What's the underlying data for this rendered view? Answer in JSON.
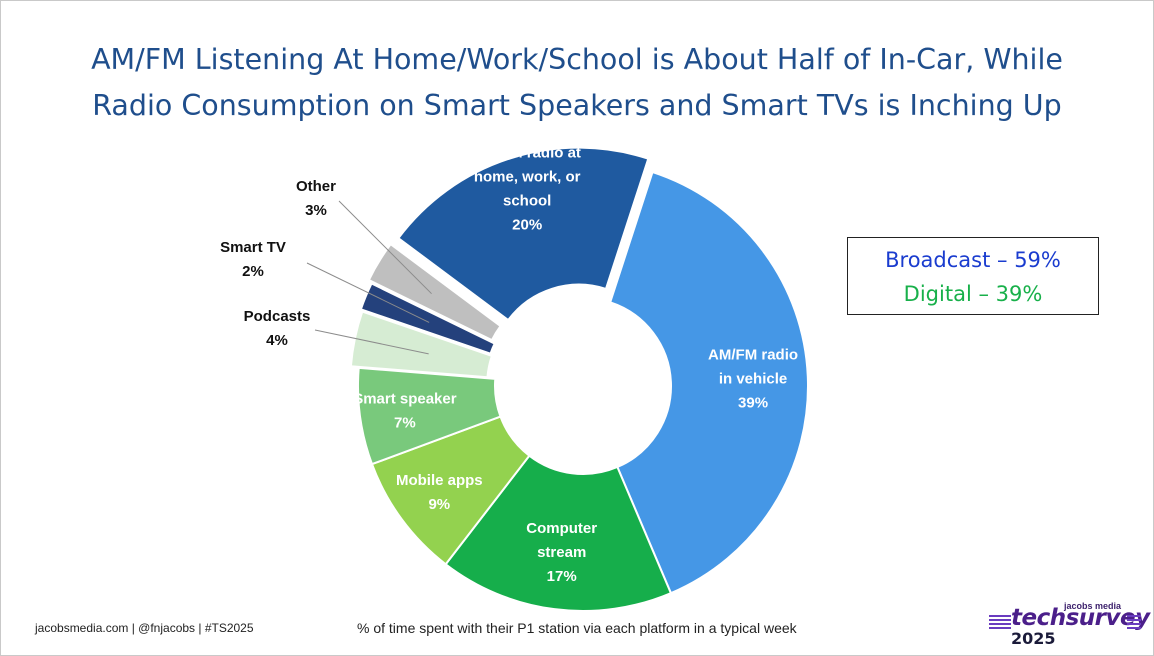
{
  "title": {
    "line1": "AM/FM Listening At Home/Work/School is About Half of In-Car, While",
    "line2": "Radio Consumption on Smart Speakers and Smart TVs is Inching Up"
  },
  "chart_data": {
    "type": "pie",
    "subtype": "donut",
    "slices": [
      {
        "label": [
          "AM/FM radio",
          "in vehicle"
        ],
        "value": 39,
        "value_label": "39%",
        "color": "#4597e6"
      },
      {
        "label": [
          "Computer",
          "stream"
        ],
        "value": 17,
        "value_label": "17%",
        "color": "#16ae4b"
      },
      {
        "label": [
          "Mobile apps"
        ],
        "value": 9,
        "value_label": "9%",
        "color": "#93d24f"
      },
      {
        "label": [
          "Smart speaker"
        ],
        "value": 7,
        "value_label": "7%",
        "color": "#79c97c"
      },
      {
        "label": [
          "Podcasts"
        ],
        "value": 4,
        "value_label": "4%",
        "color": "#d6ecd3"
      },
      {
        "label": [
          "Smart TV"
        ],
        "value": 2,
        "value_label": "2%",
        "color": "#24417c"
      },
      {
        "label": [
          "Other"
        ],
        "value": 3,
        "value_label": "3%",
        "color": "#bfbfbf"
      },
      {
        "label": [
          "AM/FM radio at",
          "home, work, or",
          "school"
        ],
        "value": 20,
        "value_label": "20%",
        "color": "#1f5aa0"
      }
    ],
    "exploded": [
      "AM/FM radio at home, work, or school",
      "Other",
      "Smart TV",
      "Podcasts"
    ],
    "caption": "% of time spent with their P1 station via each platform in a typical week"
  },
  "callout": {
    "broadcast": "Broadcast – 59%",
    "digital": "Digital – 39%",
    "broadcast_color": "#1a3ccf",
    "digital_color": "#18b04a"
  },
  "footer": {
    "credits": "jacobsmedia.com   |   @fnjacobs   |   #TS2025"
  },
  "logo": {
    "brand": "jacobs media",
    "word": "techsurvey",
    "year": "2025"
  }
}
